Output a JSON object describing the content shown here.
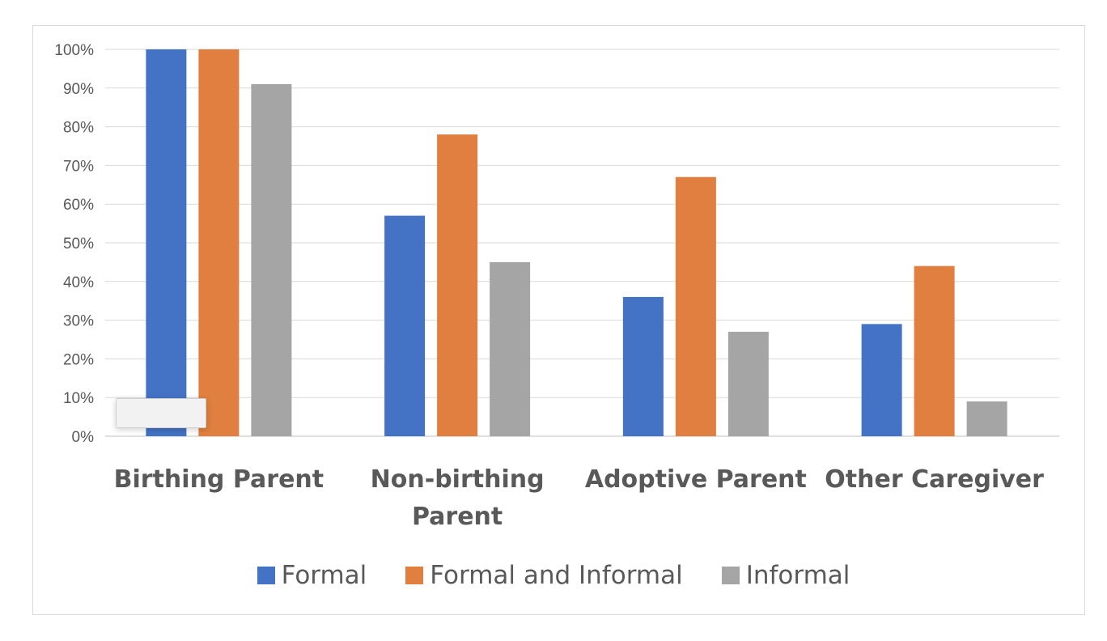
{
  "chart_data": {
    "type": "bar",
    "categories": [
      "Birthing Parent",
      "Non-birthing Parent",
      "Adoptive Parent",
      "Other Caregiver"
    ],
    "category_lines": [
      [
        "Birthing Parent"
      ],
      [
        "Non-birthing",
        "Parent"
      ],
      [
        "Adoptive Parent"
      ],
      [
        "Other Caregiver"
      ]
    ],
    "series": [
      {
        "name": "Formal",
        "color": "#4472c4",
        "values": [
          100,
          57,
          36,
          29
        ]
      },
      {
        "name": "Formal and Informal",
        "color": "#e07f3f",
        "values": [
          100,
          78,
          67,
          44
        ]
      },
      {
        "name": "Informal",
        "color": "#a5a5a5",
        "values": [
          91,
          45,
          27,
          9
        ]
      }
    ],
    "ylim": [
      0,
      100
    ],
    "yticks": [
      "0%",
      "10%",
      "20%",
      "30%",
      "40%",
      "50%",
      "60%",
      "70%",
      "80%",
      "90%",
      "100%"
    ],
    "ytick_values": [
      0,
      10,
      20,
      30,
      40,
      50,
      60,
      70,
      80,
      90,
      100
    ],
    "grid": true,
    "legend_position": "bottom",
    "title": "",
    "xlabel": "",
    "ylabel": ""
  },
  "legend": {
    "items": [
      {
        "label": "Formal",
        "color": "#4472c4"
      },
      {
        "label": "Formal and Informal",
        "color": "#e07f3f"
      },
      {
        "label": "Informal",
        "color": "#a5a5a5"
      }
    ]
  }
}
